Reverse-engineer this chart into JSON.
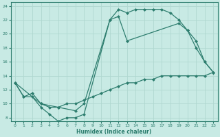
{
  "xlabel": "Humidex (Indice chaleur)",
  "xlim": [
    -0.5,
    23.5
  ],
  "ylim": [
    7.5,
    24.5
  ],
  "bg_color": "#c8eae4",
  "line_color": "#2d7d6e",
  "grid_color": "#b0d8d0",
  "line1_x": [
    0,
    1,
    2,
    3,
    4,
    5,
    6,
    7,
    8,
    11,
    12,
    13,
    14,
    15,
    16,
    17,
    18,
    19,
    20,
    21,
    22,
    23
  ],
  "line1_y": [
    13,
    11,
    11,
    9.5,
    8.5,
    7.5,
    8.0,
    8.0,
    8.5,
    22,
    23.5,
    23.0,
    23.5,
    23.5,
    23.5,
    23.5,
    23.0,
    22,
    20.5,
    19.0,
    16.0,
    14.5
  ],
  "line2_x": [
    0,
    3,
    5,
    7,
    8,
    11,
    12,
    13,
    19,
    20,
    21,
    22,
    23
  ],
  "line2_y": [
    13,
    10,
    9.5,
    9.0,
    10,
    22,
    22.5,
    19.0,
    21.5,
    20.5,
    18.0,
    16.0,
    14.5
  ],
  "line3_x": [
    0,
    1,
    2,
    3,
    4,
    5,
    6,
    7,
    8,
    9,
    10,
    11,
    12,
    13,
    14,
    15,
    16,
    17,
    18,
    19,
    20,
    21,
    22,
    23
  ],
  "line3_y": [
    13,
    11,
    11.5,
    10.0,
    9.5,
    9.5,
    10.0,
    10.0,
    10.5,
    11.0,
    11.5,
    12.0,
    12.5,
    13.0,
    13.0,
    13.5,
    13.5,
    14.0,
    14.0,
    14.0,
    14.0,
    14.0,
    14.0,
    14.5
  ]
}
